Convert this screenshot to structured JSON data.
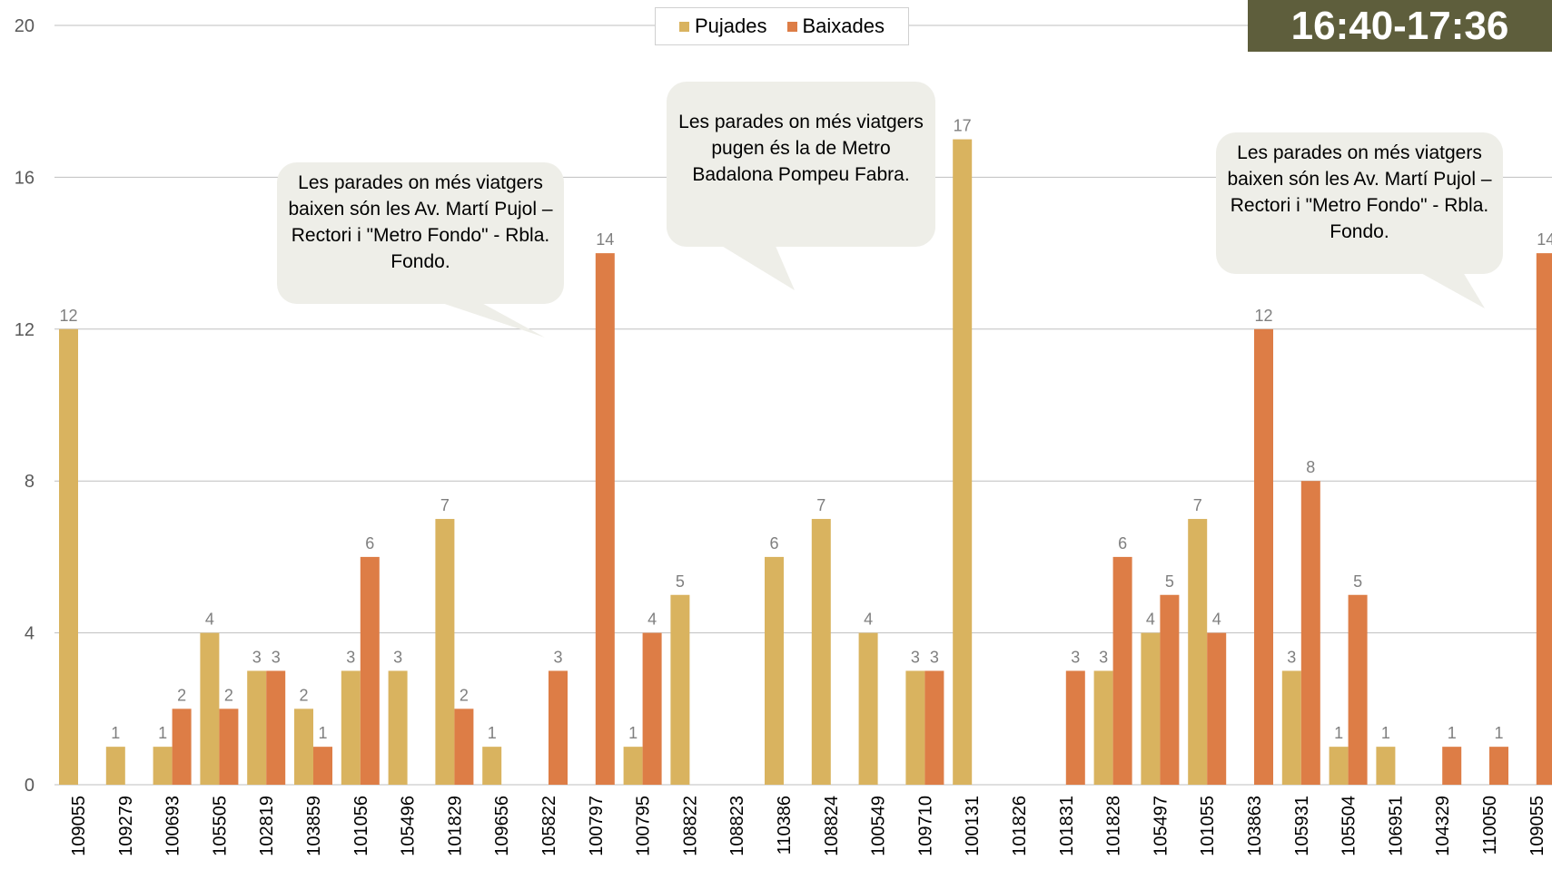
{
  "legend": {
    "pujades": "Pujades",
    "baixades": "Baixades"
  },
  "time_range": "16:40-17:36",
  "callouts": [
    "Les parades on més viatgers baixen són les Av. Martí Pujol – Rectori i \"Metro Fondo\" - Rbla. Fondo.",
    "Les parades on més viatgers pugen és la de Metro Badalona Pompeu Fabra.",
    "Les parades on més viatgers baixen són les Av. Martí Pujol – Rectori i \"Metro Fondo\" - Rbla. Fondo."
  ],
  "colors": {
    "pujades": "#d9b35f",
    "baixades": "#dd7d46",
    "grid": "#bfbfbf",
    "badge": "#5e5e3c"
  },
  "chart_data": {
    "type": "bar",
    "categories": [
      "109055",
      "109279",
      "100693",
      "105505",
      "102819",
      "103859",
      "101056",
      "105496",
      "101829",
      "109656",
      "105822",
      "100797",
      "100795",
      "108822",
      "108823",
      "110386",
      "108824",
      "100549",
      "109710",
      "100131",
      "101826",
      "101831",
      "101828",
      "105497",
      "101055",
      "103863",
      "105931",
      "105504",
      "106951",
      "104329",
      "110050",
      "109055"
    ],
    "series": [
      {
        "name": "Pujades",
        "values": [
          12,
          1,
          1,
          4,
          3,
          2,
          3,
          3,
          7,
          1,
          0,
          0,
          1,
          5,
          0,
          6,
          7,
          4,
          3,
          17,
          0,
          0,
          3,
          4,
          7,
          0,
          3,
          1,
          1,
          0,
          0,
          0
        ]
      },
      {
        "name": "Baixades",
        "values": [
          0,
          0,
          2,
          2,
          3,
          1,
          6,
          0,
          2,
          0,
          3,
          14,
          4,
          0,
          0,
          0,
          0,
          0,
          3,
          0,
          0,
          3,
          6,
          5,
          4,
          12,
          8,
          5,
          0,
          1,
          1,
          14
        ]
      }
    ],
    "yticks": [
      0,
      4,
      8,
      12,
      16,
      20
    ],
    "ylim": [
      0,
      20
    ],
    "grid": true,
    "legend_position": "top-center"
  }
}
